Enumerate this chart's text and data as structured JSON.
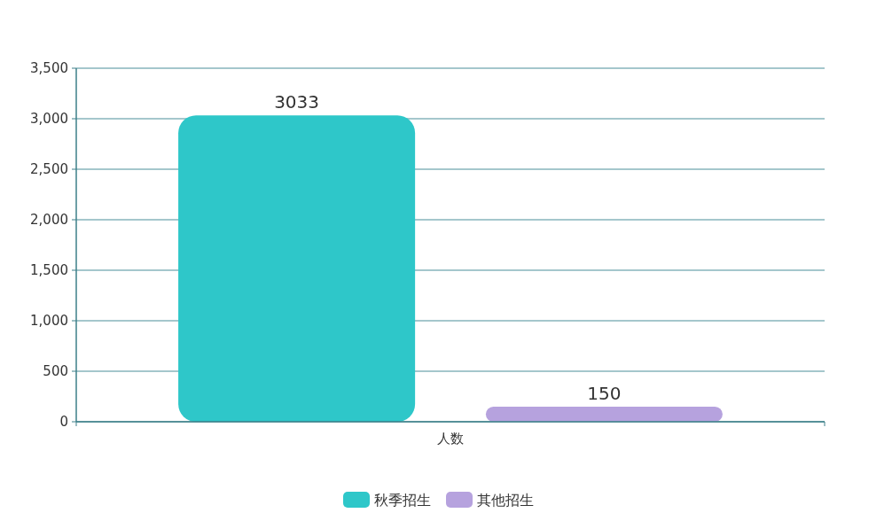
{
  "chart_data": {
    "type": "bar",
    "categories": [
      "人数"
    ],
    "series": [
      {
        "name": "秋季招生",
        "color": "#2ec7c9",
        "values": [
          3033
        ]
      },
      {
        "name": "其他招生",
        "color": "#b6a2de",
        "values": [
          150
        ]
      }
    ],
    "ylim": [
      0,
      3500
    ],
    "yticks": [
      {
        "value": 0,
        "label": "0"
      },
      {
        "value": 500,
        "label": "500"
      },
      {
        "value": 1000,
        "label": "1,000"
      },
      {
        "value": 1500,
        "label": "1,500"
      },
      {
        "value": 2000,
        "label": "2,000"
      },
      {
        "value": 2500,
        "label": "2,500"
      },
      {
        "value": 3000,
        "label": "3,000"
      },
      {
        "value": 3500,
        "label": "3,500"
      }
    ],
    "grid": "y",
    "legend": "bottom",
    "data_labels": true
  }
}
